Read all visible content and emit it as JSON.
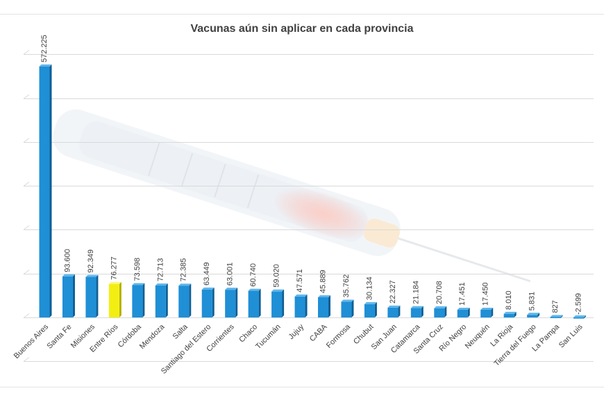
{
  "chart_data": {
    "type": "bar",
    "title": "Vacunas aún sin aplicar en cada provincia",
    "xlabel": "",
    "ylabel": "",
    "ylim": [
      -100000,
      600000
    ],
    "grid": true,
    "categories": [
      "Buenos Aires",
      "Santa Fe",
      "Misiones",
      "Entre Ríos",
      "Córdoba",
      "Mendoza",
      "Salta",
      "Santiago del Estero",
      "Corrientes",
      "Chaco",
      "Tucumán",
      "Jujuy",
      "CABA",
      "Formosa",
      "Chubut",
      "San Juan",
      "Catamarca",
      "Santa Cruz",
      "Río Negro",
      "Neuquén",
      "La Rioja",
      "Tierra del Fuego",
      "La Pampa",
      "San Luis"
    ],
    "values": [
      572225,
      93600,
      92349,
      76277,
      73598,
      72713,
      72385,
      63449,
      63001,
      60740,
      59020,
      47571,
      45889,
      35762,
      30134,
      22327,
      21184,
      20708,
      17451,
      17450,
      8010,
      5831,
      827,
      -2599
    ],
    "value_labels": [
      "572.225",
      "93.600",
      "92.349",
      "76.277",
      "73.598",
      "72.713",
      "72.385",
      "63.449",
      "63.001",
      "60.740",
      "59.020",
      "47.571",
      "45.889",
      "35.762",
      "30.134",
      "22.327",
      "21.184",
      "20.708",
      "17.451",
      "17.450",
      "8.010",
      "5.831",
      "827",
      "-2.599"
    ],
    "highlight_index": 3,
    "colors": {
      "bar": "#1f8fd6",
      "bar_side": "#0f5f96",
      "bar_top": "#5fb6ea",
      "highlight": "#f2ee12",
      "highlight_side": "#b5b000",
      "highlight_top": "#fbf87a",
      "grid": "#d9d9d9",
      "text": "#404040"
    }
  }
}
